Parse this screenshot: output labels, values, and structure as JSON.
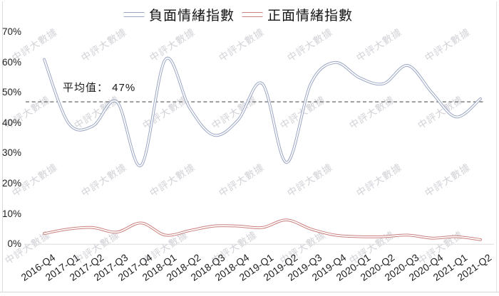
{
  "legend": {
    "items": [
      {
        "label": "負面情緒指數",
        "color": "#9aa6c4"
      },
      {
        "label": "正面情緒指數",
        "color": "#c9807e"
      }
    ]
  },
  "watermark": {
    "text": "中評大數據"
  },
  "y_axis": {
    "ticks": [
      "0%",
      "10%",
      "20%",
      "30%",
      "40%",
      "50%",
      "60%",
      "70%"
    ]
  },
  "annotation": {
    "average_label": "平均值： 47%"
  },
  "chart_data": {
    "type": "line",
    "title": "",
    "xlabel": "",
    "ylabel": "",
    "ylim": [
      0,
      70
    ],
    "ytick_values": [
      0,
      10,
      20,
      30,
      40,
      50,
      60,
      70
    ],
    "grid": false,
    "legend_position": "top",
    "smooth": true,
    "categories": [
      "2016-Q4",
      "2017-Q1",
      "2017-Q2",
      "2017-Q3",
      "2017-Q4",
      "2018-Q1",
      "2018-Q2",
      "2018-Q3",
      "2018-Q4",
      "2019-Q1",
      "2019-Q2",
      "2019-Q3",
      "2019-Q4",
      "2020-Q1",
      "2020-Q2",
      "2020-Q3",
      "2020-Q4",
      "2021-Q1",
      "2021-Q2"
    ],
    "series": [
      {
        "name": "負面情緒指數",
        "color": "#9aa6c4",
        "values": [
          61,
          40,
          39,
          47,
          26,
          61,
          45,
          36,
          41,
          53,
          27,
          53,
          60,
          55,
          53,
          59,
          50,
          42,
          48
        ]
      },
      {
        "name": "正面情緒指數",
        "color": "#c9807e",
        "values": [
          3.5,
          5,
          5.5,
          4,
          7,
          3,
          4.5,
          6,
          6,
          5.5,
          8,
          5,
          3,
          2.5,
          2.5,
          3,
          2,
          2.5,
          1.5
        ]
      }
    ],
    "average_line": {
      "value": 47,
      "label": "平均值： 47%",
      "style": "dashed",
      "color": "#7f7f7f"
    }
  }
}
